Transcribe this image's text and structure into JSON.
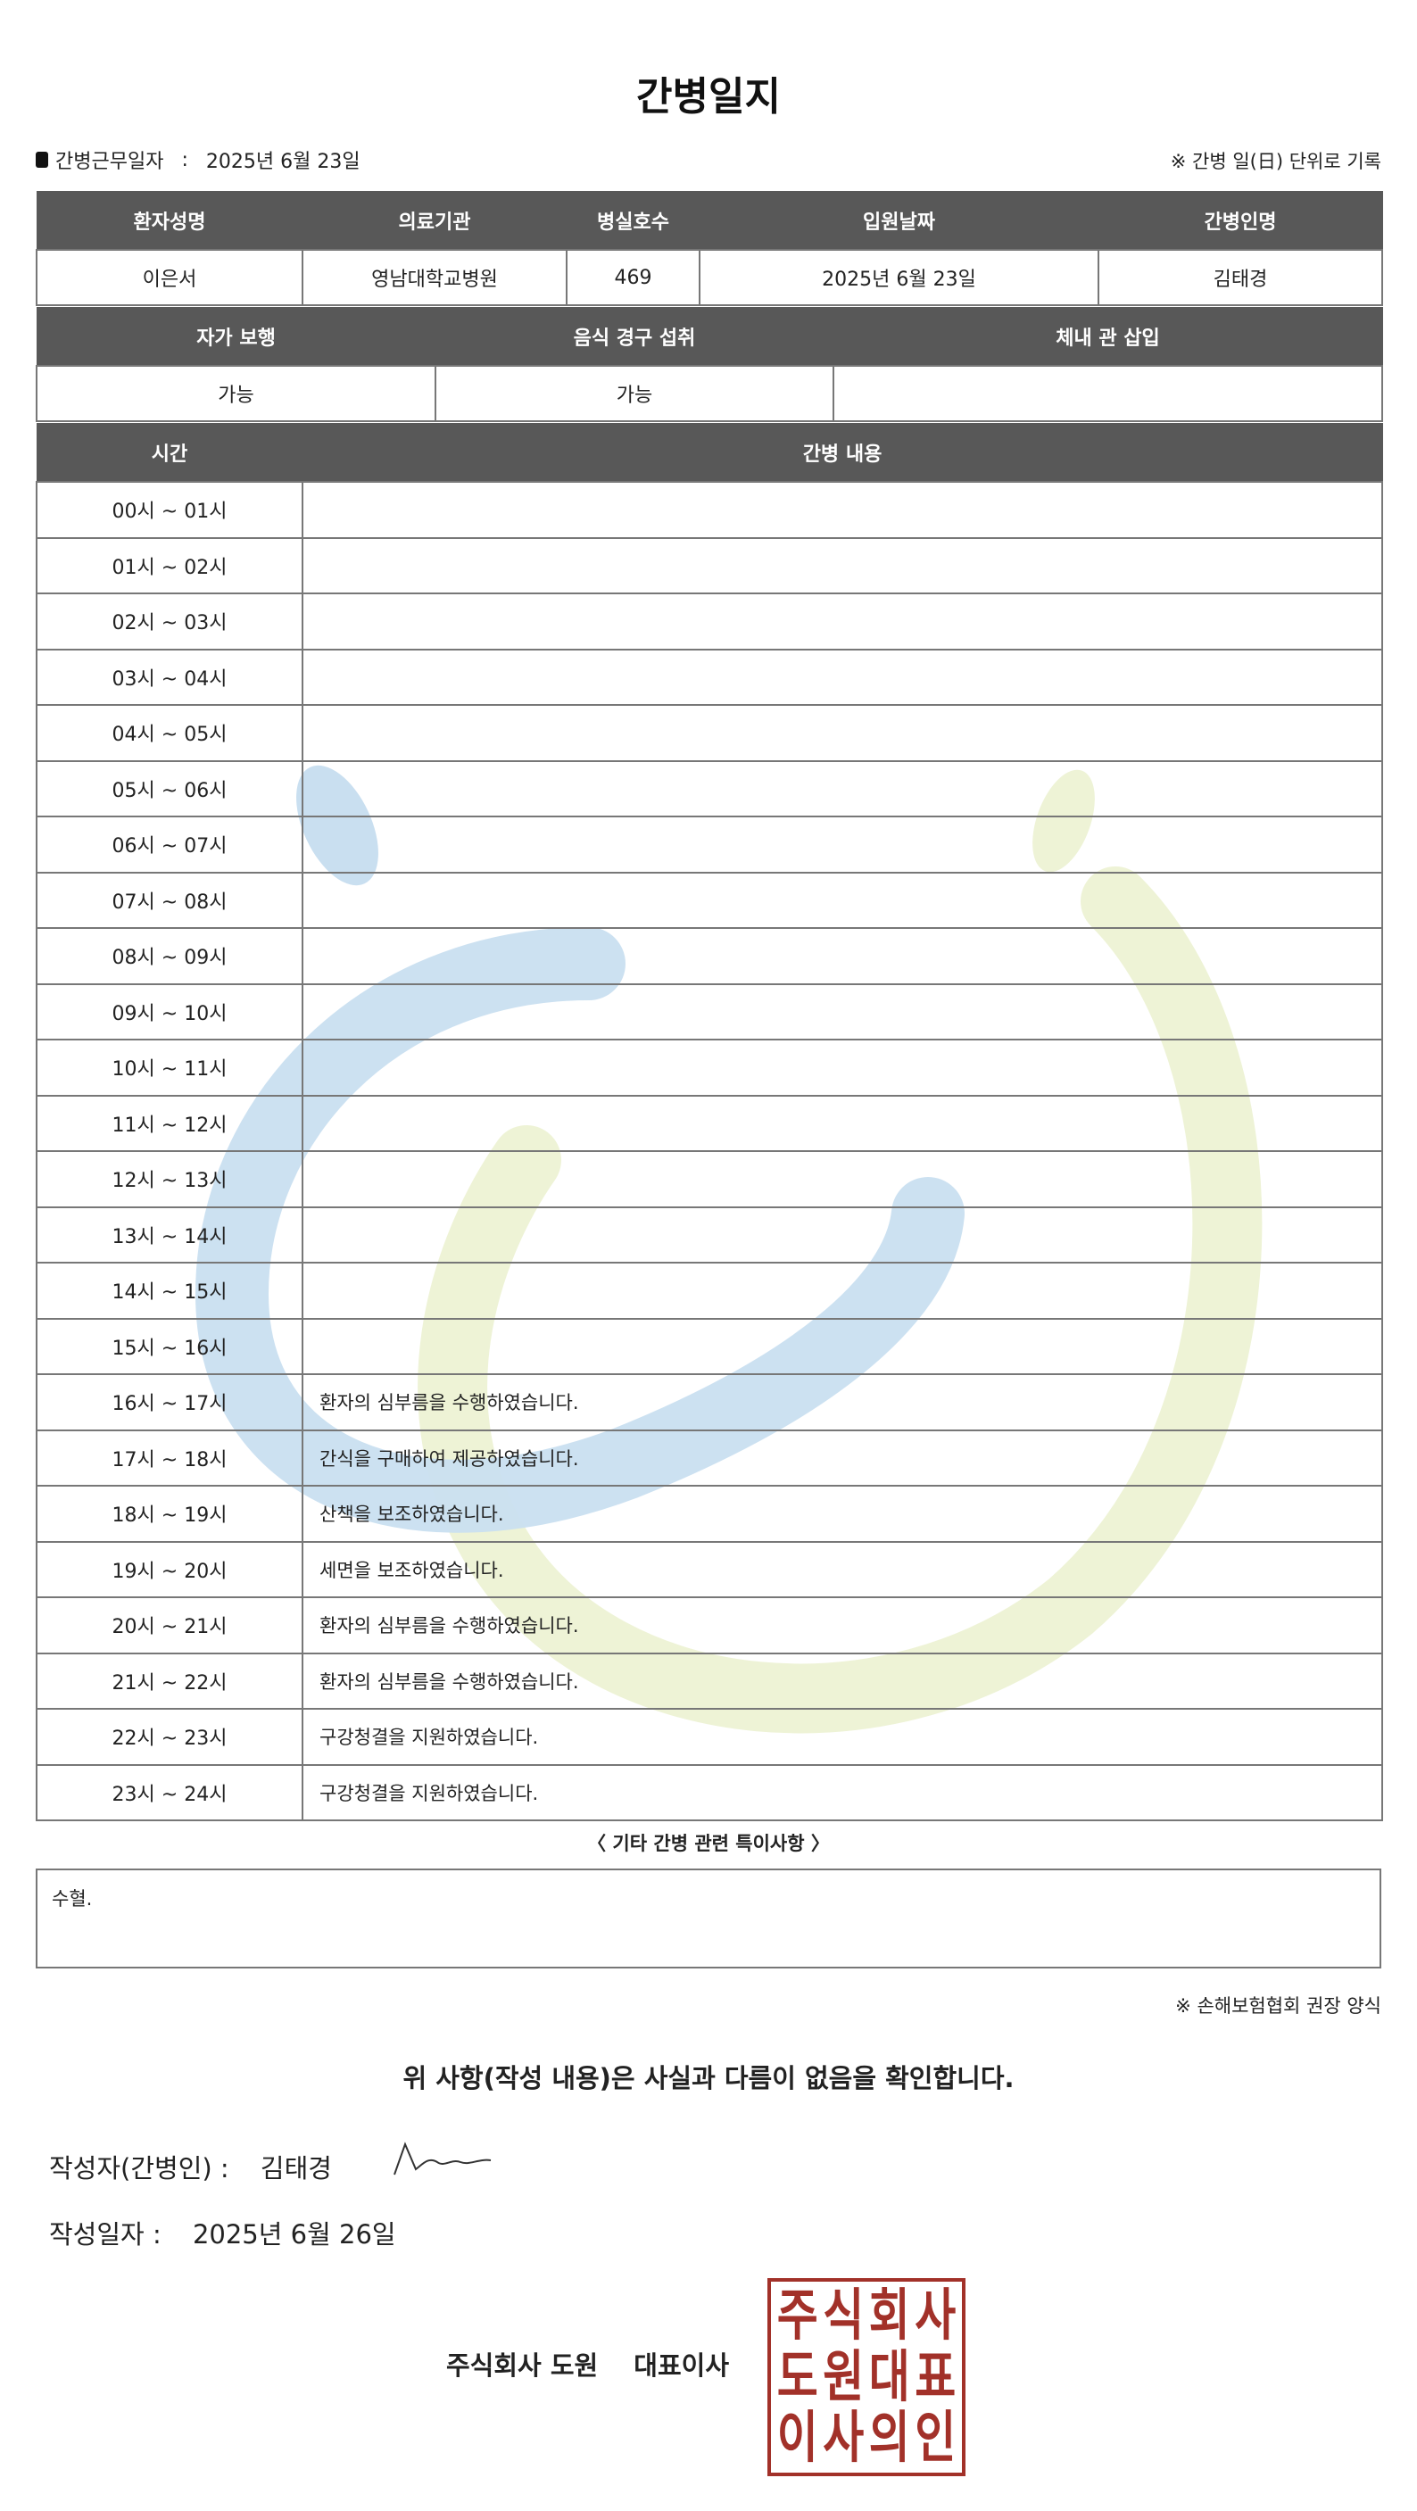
{
  "title": "간병일지",
  "duty_date": {
    "label": "간병근무일자",
    "separator": ":",
    "value": "2025년 6월 23일"
  },
  "note_top": "※ 간병 일(日) 단위로 기록",
  "patient_table": {
    "headers": [
      "환자성명",
      "의료기관",
      "병실호수",
      "입원날짜",
      "간병인명"
    ],
    "values": [
      "이은서",
      "영남대학교병원",
      "469",
      "2025년 6월 23일",
      "김태경"
    ]
  },
  "status_table": {
    "headers": [
      "자가 보행",
      "음식 경구 섭취",
      "체내 관 삽입"
    ],
    "values": [
      "가능",
      "가능",
      ""
    ]
  },
  "log_table": {
    "headers": [
      "시간",
      "간병 내용"
    ],
    "rows": [
      {
        "time": "00시 ~ 01시",
        "content": ""
      },
      {
        "time": "01시 ~ 02시",
        "content": ""
      },
      {
        "time": "02시 ~ 03시",
        "content": ""
      },
      {
        "time": "03시 ~ 04시",
        "content": ""
      },
      {
        "time": "04시 ~ 05시",
        "content": ""
      },
      {
        "time": "05시 ~ 06시",
        "content": ""
      },
      {
        "time": "06시 ~ 07시",
        "content": ""
      },
      {
        "time": "07시 ~ 08시",
        "content": ""
      },
      {
        "time": "08시 ~ 09시",
        "content": ""
      },
      {
        "time": "09시 ~ 10시",
        "content": ""
      },
      {
        "time": "10시 ~ 11시",
        "content": ""
      },
      {
        "time": "11시 ~ 12시",
        "content": ""
      },
      {
        "time": "12시 ~ 13시",
        "content": ""
      },
      {
        "time": "13시 ~ 14시",
        "content": ""
      },
      {
        "time": "14시 ~ 15시",
        "content": ""
      },
      {
        "time": "15시 ~ 16시",
        "content": ""
      },
      {
        "time": "16시 ~ 17시",
        "content": "환자의 심부름을 수행하였습니다."
      },
      {
        "time": "17시 ~ 18시",
        "content": "간식을 구매하여 제공하였습니다."
      },
      {
        "time": "18시 ~ 19시",
        "content": "산책을 보조하였습니다."
      },
      {
        "time": "19시 ~ 20시",
        "content": "세면을 보조하였습니다."
      },
      {
        "time": "20시 ~ 21시",
        "content": "환자의 심부름을 수행하였습니다."
      },
      {
        "time": "21시 ~ 22시",
        "content": "환자의 심부름을 수행하였습니다."
      },
      {
        "time": "22시 ~ 23시",
        "content": "구강청결을 지원하였습니다."
      },
      {
        "time": "23시 ~ 24시",
        "content": "구강청결을 지원하였습니다."
      }
    ]
  },
  "etc": {
    "label": "〈 기타 간병 관련 특이사항 〉",
    "value": "수혈."
  },
  "note_bottom": "※ 손해보험협회 권장 양식",
  "confirm": "위 사항(작성 내용)은 사실과 다름이 없음을 확인합니다.",
  "writer": {
    "label": "작성자(간병인) :",
    "value": "김태경"
  },
  "written_date": {
    "label": "작성일자 :",
    "value": "2025년 6월 26일"
  },
  "company": {
    "name": "주식회사 도원",
    "title": "대표이사"
  },
  "stamp": {
    "text": [
      "주",
      "식",
      "회",
      "사",
      "도",
      "원",
      "대",
      "표",
      "이",
      "사",
      "의",
      "인"
    ],
    "color": "#a23129"
  },
  "colors": {
    "header_bg": "#585858",
    "watermark_blue": "#c9dff0",
    "watermark_green": "#eef3d6"
  }
}
